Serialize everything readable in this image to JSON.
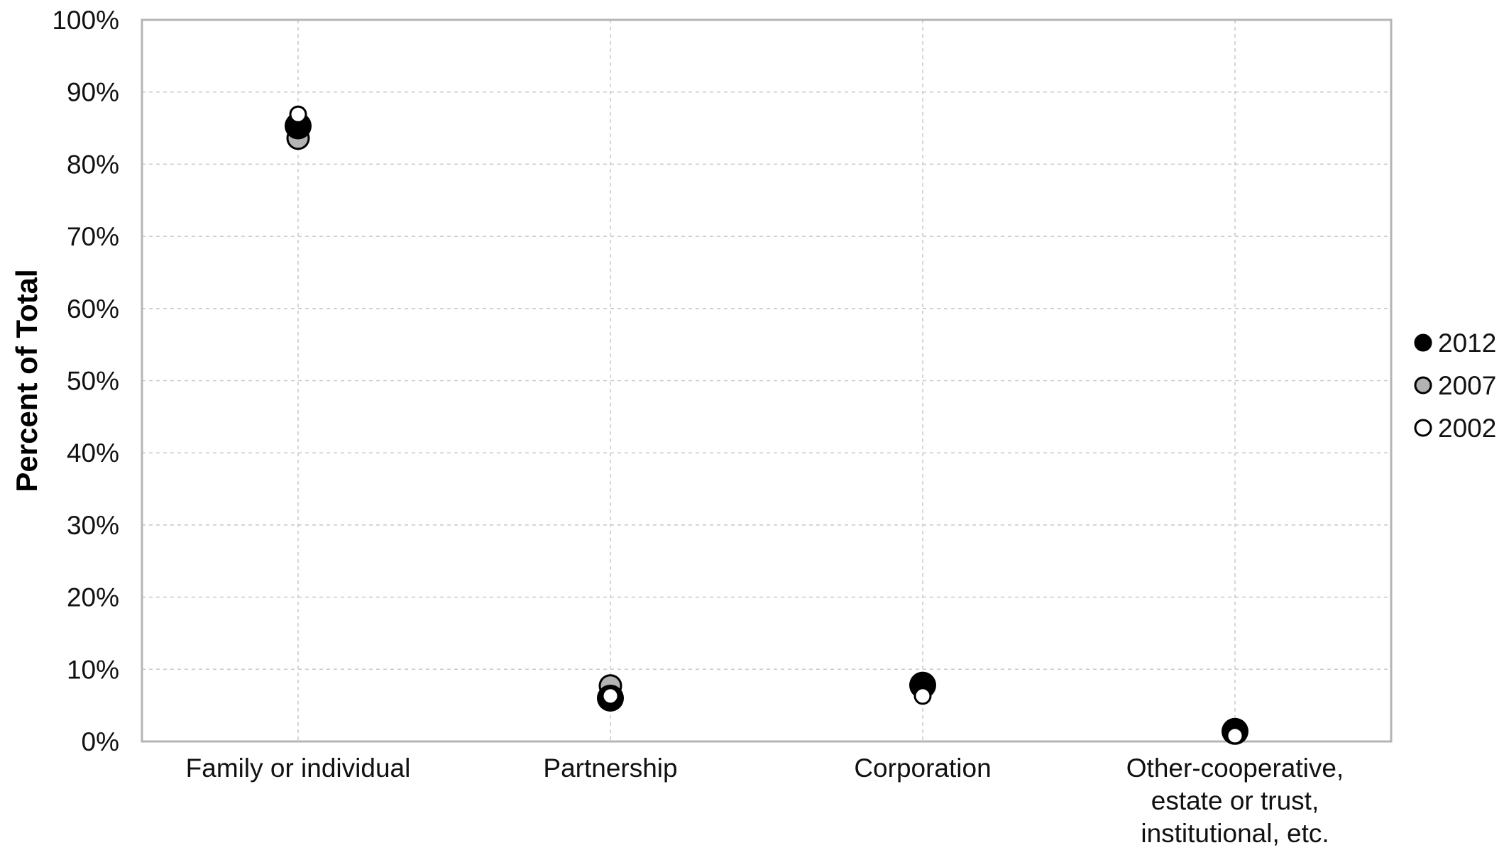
{
  "chart_data": {
    "type": "scatter",
    "ylabel": "Percent of Total",
    "xlabel": "",
    "ylim": [
      0,
      100
    ],
    "yticks": [
      "0%",
      "10%",
      "20%",
      "30%",
      "40%",
      "50%",
      "60%",
      "70%",
      "80%",
      "90%",
      "100%"
    ],
    "categories": [
      [
        "Family or individual"
      ],
      [
        "Partnership"
      ],
      [
        "Corporation"
      ],
      [
        "Other-cooperative,",
        "estate or trust,",
        "institutional, etc."
      ]
    ],
    "series": [
      {
        "name": "2012",
        "values": [
          85.3,
          6.0,
          7.8,
          1.4
        ],
        "fill": "#000000",
        "stroke": "#000000"
      },
      {
        "name": "2007",
        "values": [
          83.6,
          7.7,
          7.5,
          1.2
        ],
        "fill": "#b3b3b3",
        "stroke": "#000000"
      },
      {
        "name": "2002",
        "values": [
          86.9,
          6.3,
          6.3,
          0.8
        ],
        "fill": "#ffffff",
        "stroke": "#000000"
      }
    ],
    "grid": true,
    "legend_position": "right"
  }
}
